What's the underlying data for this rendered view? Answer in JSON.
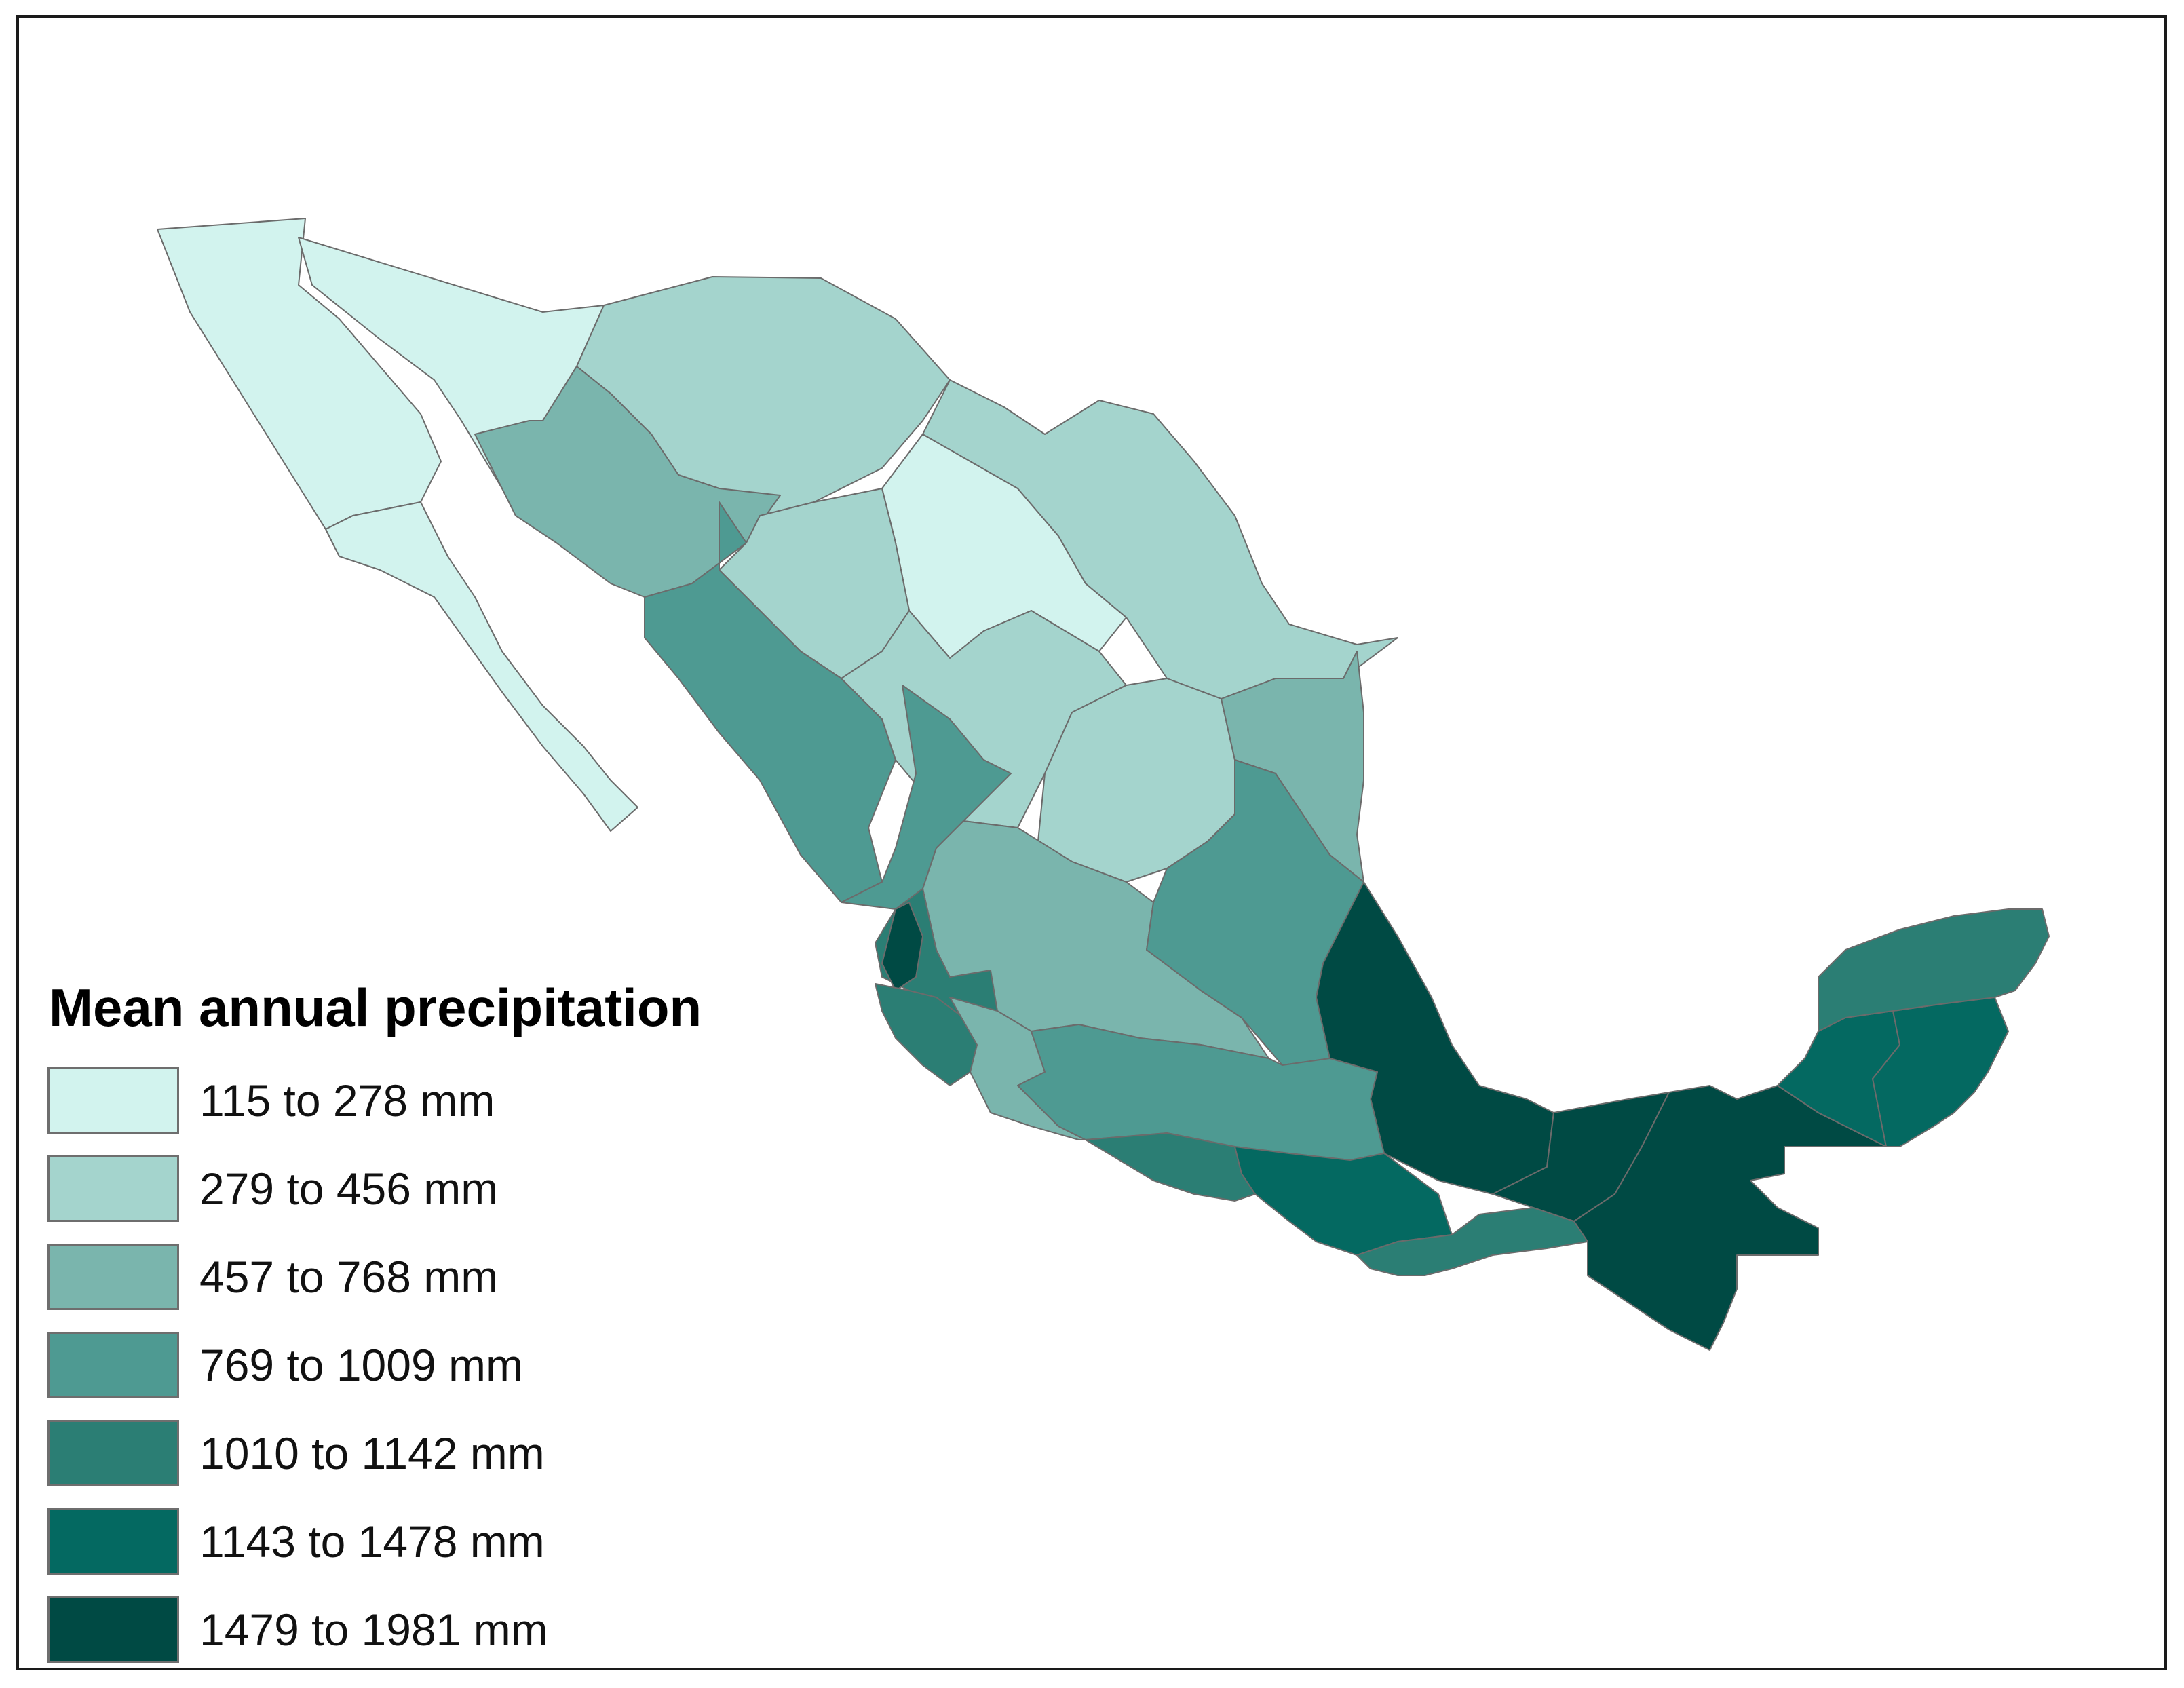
{
  "legend": {
    "title": "Mean annual precipitation",
    "classes": [
      {
        "label": "115 to 278 mm",
        "color": "#d2f3ee"
      },
      {
        "label": "279 to 456 mm",
        "color": "#a4d4cd"
      },
      {
        "label": "457 to 768 mm",
        "color": "#7ab5ad"
      },
      {
        "label": "769 to 1009 mm",
        "color": "#4e9a92"
      },
      {
        "label": "1010 to 1142  mm",
        "color": "#2b7e74"
      },
      {
        "label": "1143 to 1478 mm",
        "color": "#046961"
      },
      {
        "label": "1479 to 1981 mm",
        "color": "#004a44"
      }
    ]
  }
}
